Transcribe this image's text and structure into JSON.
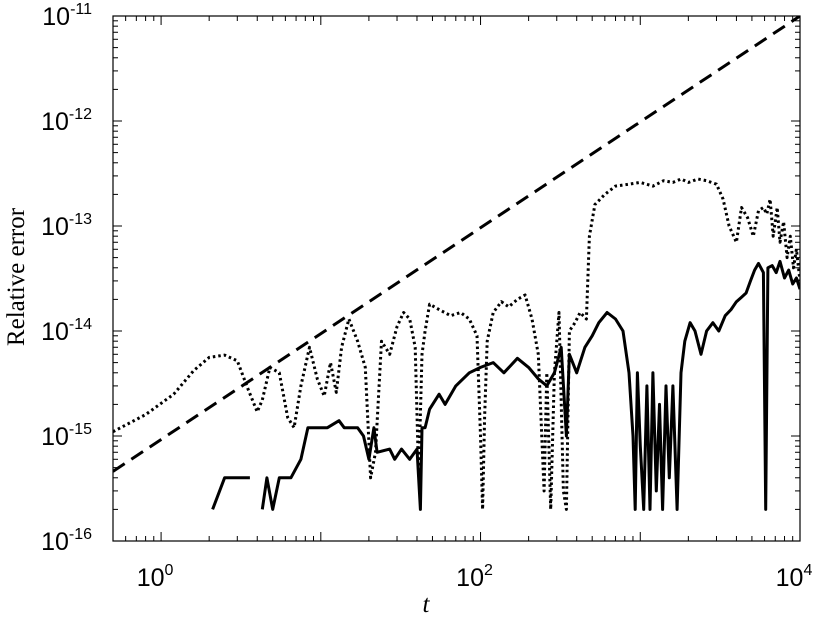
{
  "chart_data": {
    "type": "line",
    "title": "",
    "xlabel": "t",
    "ylabel": "Relative error",
    "xscale": "log",
    "yscale": "log",
    "xlim": [
      0.5,
      10000
    ],
    "ylim": [
      1e-16,
      1e-11
    ],
    "grid": false,
    "legend": "none",
    "x_ticks": [
      {
        "value": 1,
        "base": "10",
        "exp": "0"
      },
      {
        "value": 100,
        "base": "10",
        "exp": "2"
      },
      {
        "value": 10000,
        "base": "10",
        "exp": "4"
      }
    ],
    "y_ticks": [
      {
        "value": 1e-16,
        "base": "10",
        "exp": "-16"
      },
      {
        "value": 1e-15,
        "base": "10",
        "exp": "-15"
      },
      {
        "value": 1e-14,
        "base": "10",
        "exp": "-14"
      },
      {
        "value": 1e-13,
        "base": "10",
        "exp": "-13"
      },
      {
        "value": 1e-12,
        "base": "10",
        "exp": "-12"
      },
      {
        "value": 1e-11,
        "base": "10",
        "exp": "-11"
      }
    ],
    "series": [
      {
        "style": "dashed",
        "color": "#000000",
        "points": [
          [
            0.5,
            4.6e-16
          ],
          [
            10000,
            1e-11
          ]
        ]
      },
      {
        "style": "dotted",
        "color": "#000000",
        "points": [
          [
            0.5,
            1.1e-15
          ],
          [
            0.8,
            1.6e-15
          ],
          [
            1.2,
            2.5e-15
          ],
          [
            1.6,
            4.2e-15
          ],
          [
            2.0,
            5.6e-15
          ],
          [
            2.5,
            5.9e-15
          ],
          [
            3.0,
            5.2e-15
          ],
          [
            3.5,
            2.8e-15
          ],
          [
            4.0,
            1.7e-15
          ],
          [
            4.3,
            2.2e-15
          ],
          [
            4.8,
            4.5e-15
          ],
          [
            5.5,
            4e-15
          ],
          [
            6.2,
            1.5e-15
          ],
          [
            6.8,
            1.2e-15
          ],
          [
            7.5,
            3e-15
          ],
          [
            8.5,
            7e-15
          ],
          [
            9.5,
            3.5e-15
          ],
          [
            10.5,
            2.4e-15
          ],
          [
            11.5,
            5e-15
          ],
          [
            12.5,
            2.6e-15
          ],
          [
            13.5,
            7e-15
          ],
          [
            15,
            1.3e-14
          ],
          [
            17,
            8e-15
          ],
          [
            19,
            4.5e-15
          ],
          [
            20.5,
            4e-16
          ],
          [
            22,
            7e-16
          ],
          [
            24,
            8e-15
          ],
          [
            27,
            6e-15
          ],
          [
            30,
            1.1e-14
          ],
          [
            33,
            1.5e-14
          ],
          [
            36,
            1.3e-14
          ],
          [
            39,
            7e-15
          ],
          [
            41,
            4e-16
          ],
          [
            43,
            6e-15
          ],
          [
            45,
            1e-14
          ],
          [
            48,
            1.8e-14
          ],
          [
            55,
            1.6e-14
          ],
          [
            65,
            1.4e-14
          ],
          [
            75,
            1.5e-14
          ],
          [
            85,
            1.3e-14
          ],
          [
            95,
            9e-15
          ],
          [
            100,
            1e-15
          ],
          [
            103,
            2e-16
          ],
          [
            106,
            1.5e-15
          ],
          [
            110,
            8e-15
          ],
          [
            120,
            1.5e-14
          ],
          [
            135,
            1.9e-14
          ],
          [
            150,
            1.7e-14
          ],
          [
            170,
            2e-14
          ],
          [
            190,
            2.2e-14
          ],
          [
            210,
            1.3e-14
          ],
          [
            230,
            6e-15
          ],
          [
            250,
            3e-16
          ],
          [
            260,
            4e-15
          ],
          [
            275,
            2e-16
          ],
          [
            290,
            4e-15
          ],
          [
            310,
            1.5e-14
          ],
          [
            330,
            3e-16
          ],
          [
            345,
            2e-16
          ],
          [
            360,
            1e-14
          ],
          [
            390,
            1.2e-14
          ],
          [
            420,
            1.5e-14
          ],
          [
            460,
            1.3e-14
          ],
          [
            480,
            8e-14
          ],
          [
            520,
            1.6e-13
          ],
          [
            600,
            2e-13
          ],
          [
            700,
            2.4e-13
          ],
          [
            850,
            2.5e-13
          ],
          [
            1000,
            2.6e-13
          ],
          [
            1200,
            2.4e-13
          ],
          [
            1400,
            2.7e-13
          ],
          [
            1600,
            2.6e-13
          ],
          [
            1800,
            2.8e-13
          ],
          [
            2000,
            2.6e-13
          ],
          [
            2300,
            2.8e-13
          ],
          [
            2600,
            2.7e-13
          ],
          [
            3000,
            2.5e-13
          ],
          [
            3300,
            1.8e-13
          ],
          [
            3600,
            1e-13
          ],
          [
            4000,
            7e-14
          ],
          [
            4300,
            1.5e-13
          ],
          [
            4700,
            1.2e-13
          ],
          [
            5100,
            8e-14
          ],
          [
            5500,
            1.4e-13
          ],
          [
            5900,
            1.5e-13
          ],
          [
            6200,
            1.3e-13
          ],
          [
            6500,
            1.8e-13
          ],
          [
            6800,
            8e-14
          ],
          [
            7200,
            1.5e-13
          ],
          [
            7500,
            7e-14
          ],
          [
            7900,
            1.1e-13
          ],
          [
            8300,
            5e-14
          ],
          [
            8700,
            8e-14
          ],
          [
            9100,
            4e-14
          ],
          [
            9500,
            6e-14
          ],
          [
            10000,
            3e-14
          ]
        ]
      },
      {
        "style": "solid",
        "color": "#000000",
        "segments": [
          [
            [
              2.1,
              2e-16
            ],
            [
              2.5,
              4e-16
            ],
            [
              3.6,
              4e-16
            ]
          ],
          [
            [
              4.3,
              2e-16
            ],
            [
              4.6,
              4e-16
            ],
            [
              5.0,
              2e-16
            ],
            [
              5.5,
              4e-16
            ],
            [
              6.5,
              4e-16
            ],
            [
              7.5,
              6e-16
            ],
            [
              8.3,
              1.2e-15
            ],
            [
              11,
              1.2e-15
            ],
            [
              13,
              1.4e-15
            ],
            [
              14,
              1.2e-15
            ],
            [
              17,
              1.2e-15
            ],
            [
              18.5,
              1e-15
            ],
            [
              20,
              6e-16
            ],
            [
              21.5,
              1.2e-15
            ],
            [
              22.5,
              7e-16
            ],
            [
              27,
              7.5e-16
            ],
            [
              29,
              6e-16
            ],
            [
              32,
              7.5e-16
            ],
            [
              36,
              6e-16
            ],
            [
              40,
              7.5e-16
            ],
            [
              42,
              2e-16
            ],
            [
              43,
              1.2e-15
            ],
            [
              45,
              1.2e-15
            ],
            [
              48,
              1.8e-15
            ],
            [
              55,
              2.5e-15
            ],
            [
              60,
              2e-15
            ],
            [
              70,
              3e-15
            ],
            [
              85,
              4e-15
            ],
            [
              100,
              4.5e-15
            ],
            [
              120,
              5e-15
            ],
            [
              140,
              4e-15
            ],
            [
              170,
              5.5e-15
            ],
            [
              200,
              4.5e-15
            ],
            [
              230,
              3.5e-15
            ],
            [
              260,
              3e-15
            ],
            [
              290,
              4e-15
            ],
            [
              320,
              7e-15
            ],
            [
              345,
              1e-15
            ],
            [
              360,
              6e-15
            ],
            [
              400,
              4e-15
            ],
            [
              450,
              7e-15
            ],
            [
              500,
              9e-15
            ],
            [
              550,
              1.2e-14
            ],
            [
              620,
              1.5e-14
            ],
            [
              700,
              1.3e-14
            ],
            [
              780,
              1e-14
            ],
            [
              850,
              4e-15
            ],
            [
              900,
              1e-15
            ],
            [
              930,
              2e-16
            ],
            [
              960,
              4e-15
            ],
            [
              1000,
              8e-16
            ],
            [
              1050,
              2e-16
            ],
            [
              1100,
              3e-15
            ],
            [
              1150,
              2e-16
            ],
            [
              1200,
              4e-15
            ],
            [
              1260,
              3e-16
            ],
            [
              1320,
              2e-15
            ],
            [
              1380,
              2e-16
            ],
            [
              1450,
              3e-15
            ],
            [
              1520,
              4e-16
            ],
            [
              1600,
              3e-15
            ],
            [
              1700,
              2e-16
            ],
            [
              1800,
              4e-15
            ],
            [
              1900,
              8e-15
            ],
            [
              2050,
              1.2e-14
            ],
            [
              2200,
              1e-14
            ],
            [
              2400,
              6e-15
            ],
            [
              2600,
              1e-14
            ],
            [
              2850,
              1.2e-14
            ],
            [
              3100,
              1e-14
            ],
            [
              3400,
              1.4e-14
            ],
            [
              3700,
              1.6e-14
            ],
            [
              4000,
              1.9e-14
            ],
            [
              4300,
              2.1e-14
            ],
            [
              4600,
              2.3e-14
            ],
            [
              4900,
              3e-14
            ],
            [
              5200,
              3.8e-14
            ],
            [
              5500,
              4.4e-14
            ],
            [
              5900,
              3.6e-14
            ],
            [
              6100,
              2e-16
            ],
            [
              6300,
              4e-14
            ],
            [
              6700,
              4.2e-14
            ],
            [
              7100,
              3.6e-14
            ],
            [
              7500,
              4.6e-14
            ],
            [
              8000,
              3.2e-14
            ],
            [
              8500,
              3.8e-14
            ],
            [
              9000,
              2.8e-14
            ],
            [
              9500,
              3.2e-14
            ],
            [
              10000,
              2.5e-14
            ]
          ]
        ]
      }
    ]
  }
}
